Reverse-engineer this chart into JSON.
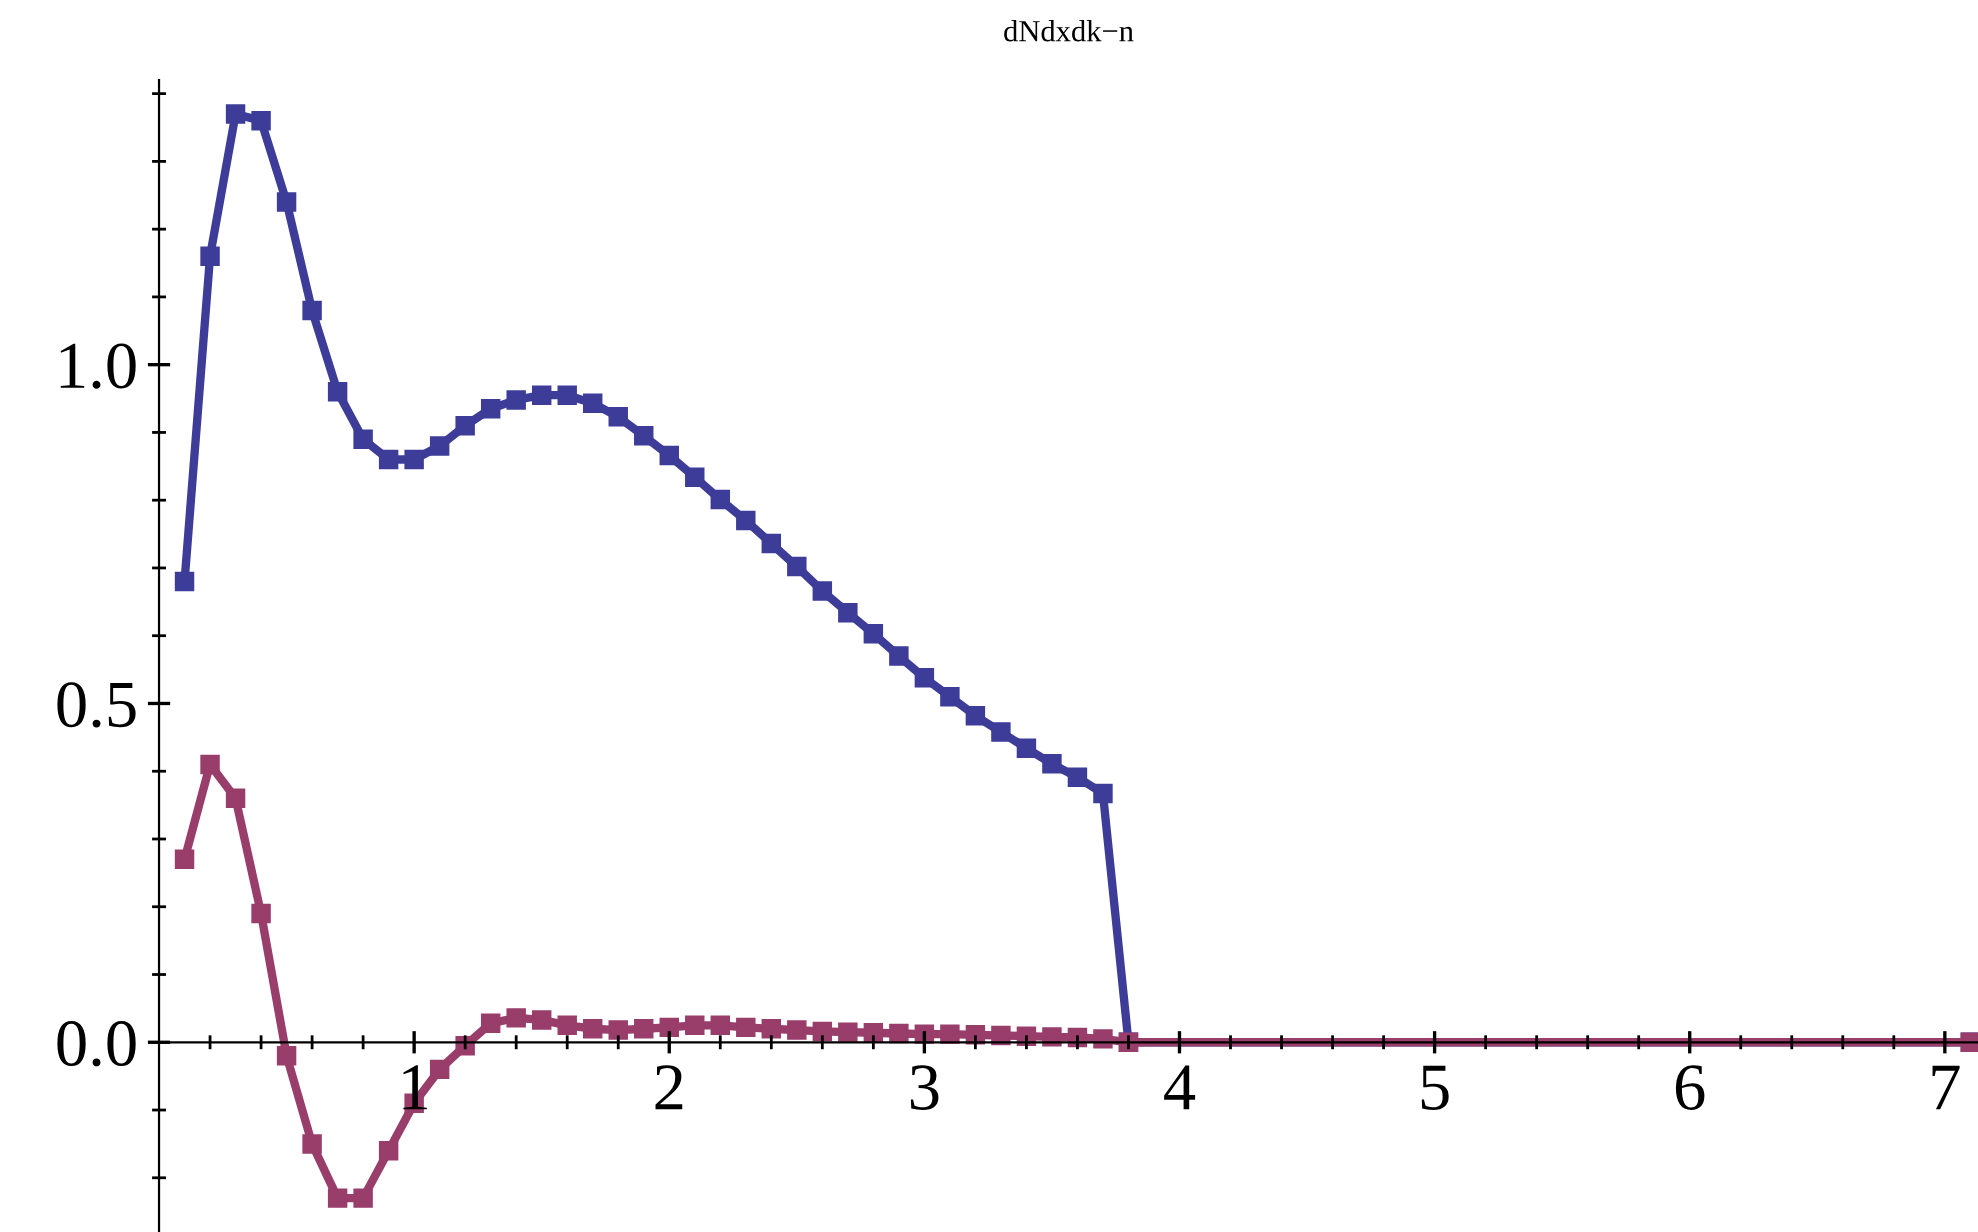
{
  "chart_data": {
    "type": "line",
    "title": "dNdxdk−n",
    "series": [
      {
        "color": "#3d3d99",
        "x": [
          0.1,
          0.2,
          0.3,
          0.4,
          0.5,
          0.6,
          0.7,
          0.8,
          0.9,
          1.0,
          1.1,
          1.2,
          1.3,
          1.4,
          1.5,
          1.6,
          1.7,
          1.8,
          1.9,
          2.0,
          2.1,
          2.2,
          2.3,
          2.4,
          2.5,
          2.6,
          2.7,
          2.8,
          2.9,
          3.0,
          3.1,
          3.2,
          3.3,
          3.4,
          3.5,
          3.6,
          3.7,
          3.8,
          7.1
        ],
        "values": [
          0.68,
          1.16,
          1.37,
          1.36,
          1.24,
          1.08,
          0.96,
          0.89,
          0.86,
          0.86,
          0.88,
          0.91,
          0.935,
          0.948,
          0.955,
          0.955,
          0.943,
          0.923,
          0.895,
          0.866,
          0.834,
          0.801,
          0.77,
          0.736,
          0.702,
          0.666,
          0.634,
          0.603,
          0.57,
          0.538,
          0.51,
          0.482,
          0.458,
          0.434,
          0.411,
          0.391,
          0.367,
          0,
          0
        ]
      },
      {
        "color": "#993d6b",
        "x": [
          0.1,
          0.2,
          0.3,
          0.4,
          0.5,
          0.6,
          0.7,
          0.8,
          0.9,
          1.0,
          1.1,
          1.2,
          1.3,
          1.4,
          1.5,
          1.6,
          1.7,
          1.8,
          1.9,
          2.0,
          2.1,
          2.2,
          2.3,
          2.4,
          2.5,
          2.6,
          2.7,
          2.8,
          2.9,
          3.0,
          3.1,
          3.2,
          3.3,
          3.4,
          3.5,
          3.6,
          3.7,
          3.8,
          7.1
        ],
        "values": [
          0.27,
          0.41,
          0.36,
          0.19,
          -0.02,
          -0.15,
          -0.23,
          -0.23,
          -0.16,
          -0.09,
          -0.04,
          -0.005,
          0.028,
          0.036,
          0.033,
          0.025,
          0.02,
          0.018,
          0.02,
          0.022,
          0.025,
          0.025,
          0.022,
          0.02,
          0.018,
          0.016,
          0.015,
          0.014,
          0.013,
          0.012,
          0.012,
          0.011,
          0.01,
          0.009,
          0.008,
          0.007,
          0.005,
          0,
          0
        ]
      }
    ],
    "marker": "square",
    "line_style": "solid",
    "grid": false,
    "legend": false,
    "xlim": [
      0,
      7.13
    ],
    "ylim": [
      -0.28,
      1.42
    ],
    "xticks": [
      {
        "value": 0.2,
        "label": null
      },
      {
        "value": 0.4,
        "label": null
      },
      {
        "value": 0.6,
        "label": null
      },
      {
        "value": 0.8,
        "label": null
      },
      1,
      {
        "value": 1.2,
        "label": null
      },
      {
        "value": 1.4,
        "label": null
      },
      {
        "value": 1.6,
        "label": null
      },
      {
        "value": 1.8,
        "label": null
      },
      2,
      {
        "value": 2.2,
        "label": null
      },
      {
        "value": 2.4,
        "label": null
      },
      {
        "value": 2.6,
        "label": null
      },
      {
        "value": 2.8,
        "label": null
      },
      3,
      {
        "value": 3.2,
        "label": null
      },
      {
        "value": 3.4,
        "label": null
      },
      {
        "value": 3.6,
        "label": null
      },
      {
        "value": 3.8,
        "label": null
      },
      4,
      {
        "value": 4.2,
        "label": null
      },
      {
        "value": 4.4,
        "label": null
      },
      {
        "value": 4.6,
        "label": null
      },
      {
        "value": 4.8,
        "label": null
      },
      5,
      {
        "value": 5.2,
        "label": null
      },
      {
        "value": 5.4,
        "label": null
      },
      {
        "value": 5.6,
        "label": null
      },
      {
        "value": 5.8,
        "label": null
      },
      6,
      {
        "value": 6.2,
        "label": null
      },
      {
        "value": 6.4,
        "label": null
      },
      {
        "value": 6.6,
        "label": null
      },
      {
        "value": 6.8,
        "label": null
      },
      7
    ],
    "yticks": [
      {
        "value": -0.2,
        "label": null
      },
      {
        "value": -0.1,
        "label": null
      },
      {
        "value": 0,
        "label": "0.0"
      },
      {
        "value": 0.1,
        "label": null
      },
      {
        "value": 0.2,
        "label": null
      },
      {
        "value": 0.3,
        "label": null
      },
      {
        "value": 0.4,
        "label": null
      },
      {
        "value": 0.5,
        "label": "0.5"
      },
      {
        "value": 0.6,
        "label": null
      },
      {
        "value": 0.7,
        "label": null
      },
      {
        "value": 0.8,
        "label": null
      },
      {
        "value": 0.9,
        "label": null
      },
      {
        "value": 1.0,
        "label": "1.0"
      },
      {
        "value": 1.1,
        "label": null
      },
      {
        "value": 1.2,
        "label": null
      },
      {
        "value": 1.3,
        "label": null
      },
      {
        "value": 1.4,
        "label": null
      }
    ]
  }
}
